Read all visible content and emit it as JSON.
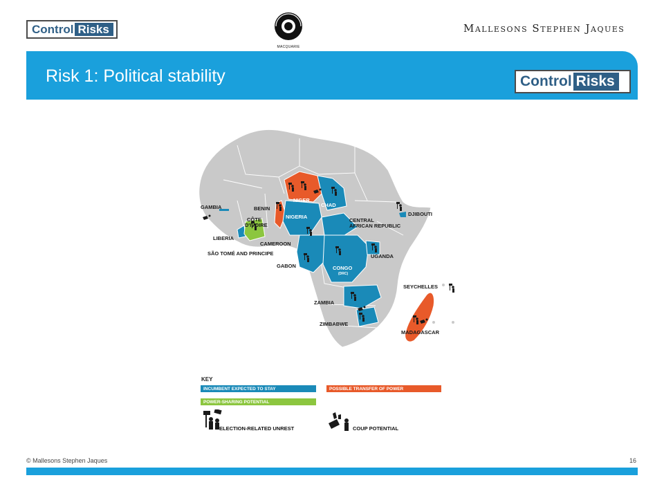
{
  "header": {
    "logo_left": {
      "part1": "Control",
      "part2": "Risks"
    },
    "macquarie_caption": "MACQUARIE",
    "mallesons": "Mallesons Stephen Jaques",
    "logo_right": {
      "part1": "Control",
      "part2": "Risks"
    }
  },
  "slide": {
    "title": "Risk 1: Political stability"
  },
  "map": {
    "labels": {
      "niger": "NIGER",
      "chad": "CHAD",
      "benin": "BENIN",
      "gambia": "GAMBIA",
      "cote_1": "CÔTE",
      "cote_2": "D'IVOIRE",
      "nigeria": "NIGERIA",
      "car_1": "CENTRAL",
      "car_2": "AFRICAN REPUBLIC",
      "djibouti": "DJIBOUTI",
      "liberia": "LIBERIA",
      "cameroon": "CAMEROON",
      "sao_tome": "SÃO TOMÉ AND PRINCIPE",
      "gabon": "GABON",
      "uganda": "UGANDA",
      "congo": "CONGO",
      "drc": "(DRC)",
      "seychelles": "SEYCHELLES",
      "zambia": "ZAMBIA",
      "zimbabwe": "ZIMBABWE",
      "madagascar": "MADAGASCAR"
    },
    "colors": {
      "incumbent": "#1a8ab8",
      "transfer": "#e85a2a",
      "power_sharing": "#8cc63f",
      "land": "#c9c9c9"
    }
  },
  "key": {
    "title": "KEY",
    "incumbent": "INCUMBENT EXPECTED TO STAY",
    "transfer": "POSSIBLE TRANSFER OF POWER",
    "power_sharing": "POWER-SHARING POTENTIAL",
    "unrest": "ELECTION-RELATED UNREST",
    "coup": "COUP POTENTIAL"
  },
  "footer": {
    "copyright": "© Mallesons Stephen Jaques",
    "page_number": "16"
  }
}
